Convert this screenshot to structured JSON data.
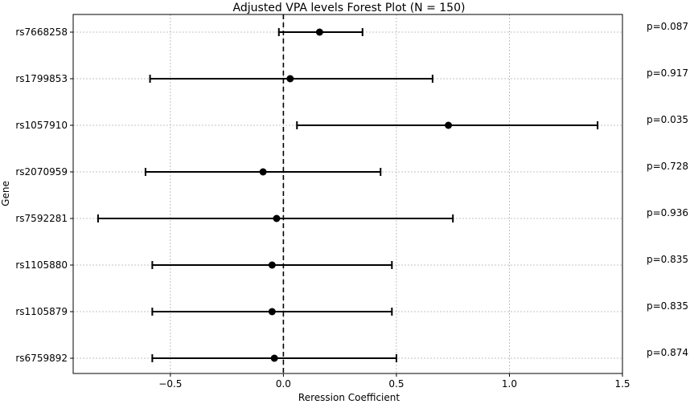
{
  "chart_data": {
    "type": "forest",
    "title": "Adjusted VPA levels Forest Plot (N = 150)",
    "xlabel": "Reression Coefficient",
    "ylabel": "Gene",
    "xlim": [
      -0.93,
      1.5
    ],
    "xticks": [
      -0.5,
      0.0,
      0.5,
      1.0,
      1.5
    ],
    "xtick_labels": [
      "−0.5",
      "0.0",
      "0.5",
      "1.0",
      "1.5"
    ],
    "reference_line": 0,
    "grid": true,
    "rows": [
      {
        "gene": "rs7668258",
        "estimate": 0.16,
        "lower": -0.02,
        "upper": 0.35,
        "p": "p=0.087"
      },
      {
        "gene": "rs1799853",
        "estimate": 0.03,
        "lower": -0.59,
        "upper": 0.66,
        "p": "p=0.917"
      },
      {
        "gene": "rs1057910",
        "estimate": 0.73,
        "lower": 0.06,
        "upper": 1.39,
        "p": "p=0.035"
      },
      {
        "gene": "rs2070959",
        "estimate": -0.09,
        "lower": -0.61,
        "upper": 0.43,
        "p": "p=0.728"
      },
      {
        "gene": "rs7592281",
        "estimate": -0.03,
        "lower": -0.82,
        "upper": 0.75,
        "p": "p=0.936"
      },
      {
        "gene": "rs1105880",
        "estimate": -0.05,
        "lower": -0.58,
        "upper": 0.48,
        "p": "p=0.835"
      },
      {
        "gene": "rs1105879",
        "estimate": -0.05,
        "lower": -0.58,
        "upper": 0.48,
        "p": "p=0.835"
      },
      {
        "gene": "rs6759892",
        "estimate": -0.04,
        "lower": -0.58,
        "upper": 0.5,
        "p": "p=0.874"
      }
    ]
  }
}
